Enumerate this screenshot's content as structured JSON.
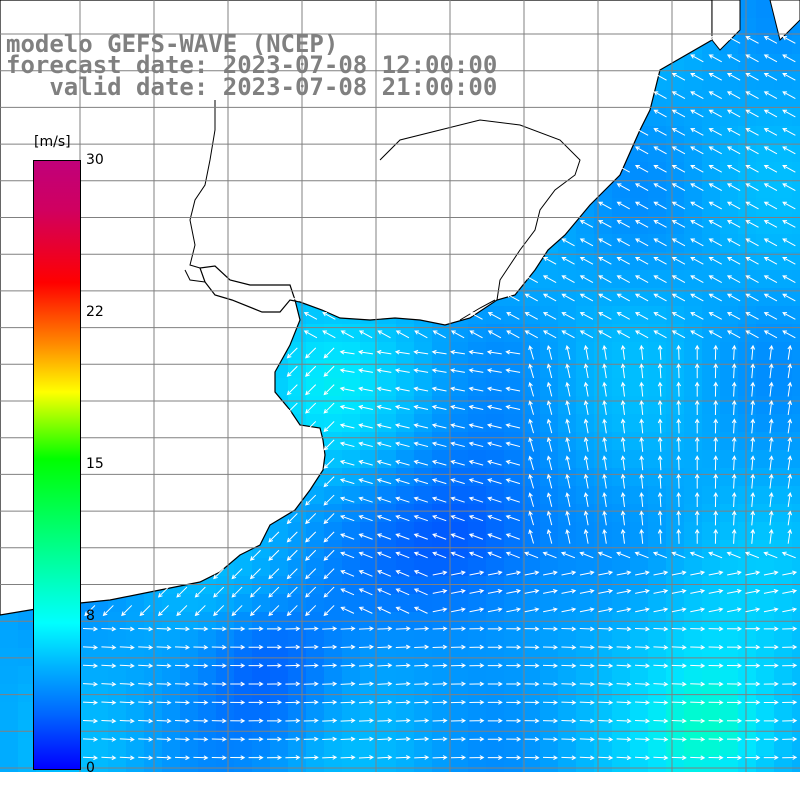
{
  "titles": {
    "line1": "modelo GEFS-WAVE (NCEP)",
    "line2": "forecast date: 2023-07-08 12:00:00",
    "line3": "   valid date: 2023-07-08 21:00:00"
  },
  "colorbar": {
    "unit": "[m/s]",
    "ticks": [
      {
        "label": "30",
        "value": 30
      },
      {
        "label": "22",
        "value": 22
      },
      {
        "label": "15",
        "value": 15
      },
      {
        "label": "8",
        "value": 8
      },
      {
        "label": "0",
        "value": 0
      }
    ]
  },
  "colors": {
    "land": "#ffffff",
    "coast": "#000000",
    "grid": "#808080",
    "arrow": "#ffffff",
    "title": "#808080"
  }
}
